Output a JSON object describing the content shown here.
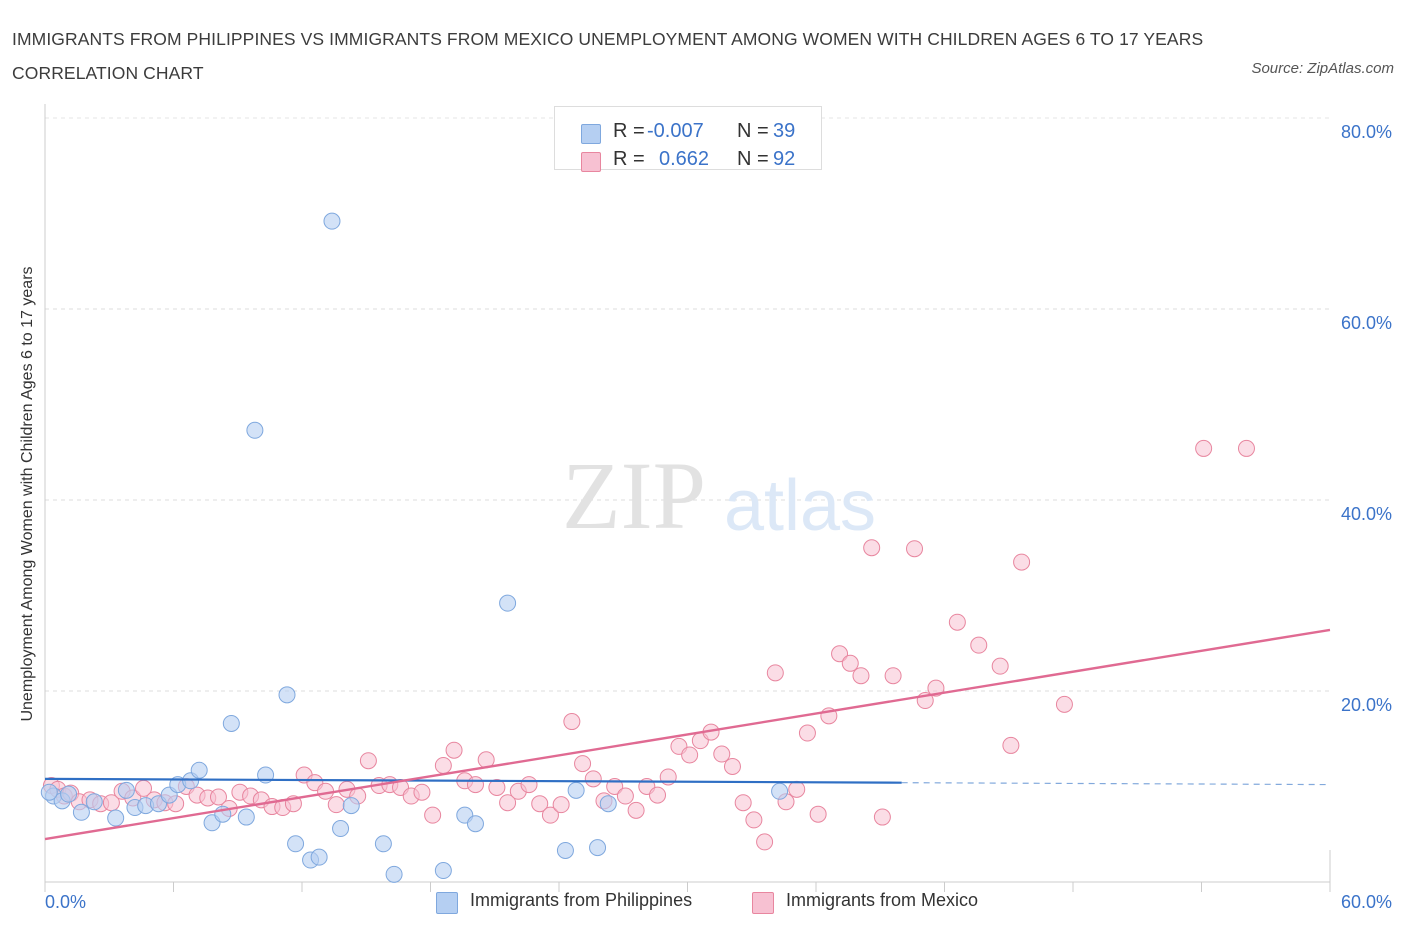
{
  "title": "IMMIGRANTS FROM PHILIPPINES VS IMMIGRANTS FROM MEXICO UNEMPLOYMENT AMONG WOMEN WITH CHILDREN AGES 6 TO 17 YEARS CORRELATION CHART",
  "source": "Source: ZipAtlas.com",
  "watermark": {
    "zip": "ZIP",
    "atlas": "atlas"
  },
  "legend": {
    "rows": [
      {
        "r_label": "R =",
        "r_value": "-0.007",
        "n_label": "N =",
        "n_value": "39",
        "color": "#a8c8f0"
      },
      {
        "r_label": "R =",
        "r_value": "0.662",
        "n_label": "N =",
        "n_value": "92",
        "color": "#f5b8cc"
      }
    ]
  },
  "colors": {
    "philippines_fill": "#b5cff2",
    "philippines_stroke": "#7fa8de",
    "philippines_line": "#2f6fc4",
    "mexico_fill": "#f7c1d2",
    "mexico_stroke": "#e8869f",
    "mexico_line": "#e06a92",
    "axis_label_blue": "#3b73c9"
  },
  "chart_data": {
    "type": "scatter",
    "title": "IMMIGRANTS FROM PHILIPPINES VS IMMIGRANTS FROM MEXICO UNEMPLOYMENT AMONG WOMEN WITH CHILDREN AGES 6 TO 17 YEARS CORRELATION CHART",
    "xlabel": "",
    "ylabel": "Unemployment Among Women with Children Ages 6 to 17 years",
    "xlim": [
      0,
      60
    ],
    "ylim": [
      0,
      80
    ],
    "x_tick_labels": [
      "0.0%",
      "60.0%"
    ],
    "y_tick_labels": [
      "20.0%",
      "40.0%",
      "60.0%",
      "80.0%"
    ],
    "y_ticks": [
      20,
      40,
      60,
      80
    ],
    "grid": "horizontal dashed",
    "legend_position": "top-center",
    "series": [
      {
        "name": "Immigrants from Philippines",
        "R": -0.007,
        "N": 39,
        "trend": {
          "x": [
            0,
            40
          ],
          "y": [
            10.8,
            10.4
          ],
          "extend_dashed_to": 60
        },
        "points": [
          [
            0.4,
            9.0
          ],
          [
            0.8,
            8.5
          ],
          [
            1.1,
            9.2
          ],
          [
            1.7,
            7.3
          ],
          [
            2.3,
            8.4
          ],
          [
            3.3,
            6.7
          ],
          [
            3.8,
            9.6
          ],
          [
            4.2,
            7.8
          ],
          [
            4.7,
            8.0
          ],
          [
            5.3,
            8.2
          ],
          [
            5.8,
            9.1
          ],
          [
            6.2,
            10.2
          ],
          [
            6.8,
            10.6
          ],
          [
            7.2,
            11.7
          ],
          [
            7.8,
            6.2
          ],
          [
            8.3,
            7.1
          ],
          [
            8.7,
            16.6
          ],
          [
            9.4,
            6.8
          ],
          [
            9.8,
            47.3
          ],
          [
            10.3,
            11.2
          ],
          [
            11.3,
            19.6
          ],
          [
            11.7,
            4.0
          ],
          [
            12.4,
            2.3
          ],
          [
            12.8,
            2.6
          ],
          [
            13.4,
            69.2
          ],
          [
            13.8,
            5.6
          ],
          [
            14.3,
            8.0
          ],
          [
            15.8,
            4.0
          ],
          [
            16.3,
            0.8
          ],
          [
            18.6,
            1.2
          ],
          [
            19.6,
            7.0
          ],
          [
            20.1,
            6.1
          ],
          [
            21.6,
            29.2
          ],
          [
            24.3,
            3.3
          ],
          [
            24.8,
            9.6
          ],
          [
            25.8,
            3.6
          ],
          [
            26.3,
            8.2
          ],
          [
            34.3,
            9.5
          ],
          [
            0.2,
            9.4
          ]
        ]
      },
      {
        "name": "Immigrants from Mexico",
        "R": 0.662,
        "N": 92,
        "trend": {
          "x": [
            0,
            60
          ],
          "y": [
            4.5,
            26.4
          ]
        },
        "points": [
          [
            0.3,
            10.1
          ],
          [
            0.6,
            9.7
          ],
          [
            0.9,
            9.0
          ],
          [
            1.2,
            9.3
          ],
          [
            1.6,
            8.4
          ],
          [
            2.1,
            8.6
          ],
          [
            2.6,
            8.2
          ],
          [
            3.1,
            8.3
          ],
          [
            3.6,
            9.5
          ],
          [
            4.1,
            8.8
          ],
          [
            4.6,
            9.8
          ],
          [
            5.1,
            8.6
          ],
          [
            5.6,
            8.3
          ],
          [
            6.1,
            8.2
          ],
          [
            6.6,
            10.0
          ],
          [
            7.1,
            9.1
          ],
          [
            7.6,
            8.8
          ],
          [
            8.1,
            8.9
          ],
          [
            8.6,
            7.7
          ],
          [
            9.1,
            9.4
          ],
          [
            9.6,
            9.0
          ],
          [
            10.1,
            8.6
          ],
          [
            10.6,
            7.9
          ],
          [
            11.1,
            7.8
          ],
          [
            11.6,
            8.2
          ],
          [
            12.1,
            11.2
          ],
          [
            12.6,
            10.4
          ],
          [
            13.1,
            9.5
          ],
          [
            13.6,
            8.1
          ],
          [
            14.1,
            9.7
          ],
          [
            14.6,
            9.0
          ],
          [
            15.1,
            12.7
          ],
          [
            15.6,
            10.1
          ],
          [
            16.1,
            10.2
          ],
          [
            16.6,
            9.9
          ],
          [
            17.1,
            9.0
          ],
          [
            17.6,
            9.4
          ],
          [
            18.1,
            7.0
          ],
          [
            18.6,
            12.2
          ],
          [
            19.1,
            13.8
          ],
          [
            19.6,
            10.6
          ],
          [
            20.1,
            10.2
          ],
          [
            20.6,
            12.8
          ],
          [
            21.1,
            9.9
          ],
          [
            21.6,
            8.3
          ],
          [
            22.1,
            9.5
          ],
          [
            22.6,
            10.2
          ],
          [
            23.1,
            8.2
          ],
          [
            23.6,
            7.0
          ],
          [
            24.1,
            8.1
          ],
          [
            24.6,
            16.8
          ],
          [
            25.1,
            12.4
          ],
          [
            25.6,
            10.8
          ],
          [
            26.1,
            8.5
          ],
          [
            26.6,
            10.0
          ],
          [
            27.1,
            9.0
          ],
          [
            27.6,
            7.5
          ],
          [
            28.1,
            10.0
          ],
          [
            28.6,
            9.1
          ],
          [
            29.1,
            11.0
          ],
          [
            29.6,
            14.2
          ],
          [
            30.1,
            13.3
          ],
          [
            30.6,
            14.8
          ],
          [
            31.1,
            15.7
          ],
          [
            31.6,
            13.4
          ],
          [
            32.1,
            12.1
          ],
          [
            32.6,
            8.3
          ],
          [
            33.1,
            6.5
          ],
          [
            33.6,
            4.2
          ],
          [
            34.1,
            21.9
          ],
          [
            34.6,
            8.4
          ],
          [
            35.1,
            9.7
          ],
          [
            35.6,
            15.6
          ],
          [
            36.1,
            7.1
          ],
          [
            36.6,
            17.4
          ],
          [
            37.1,
            23.9
          ],
          [
            37.6,
            22.9
          ],
          [
            38.1,
            21.6
          ],
          [
            38.6,
            35.0
          ],
          [
            39.1,
            6.8
          ],
          [
            39.6,
            21.6
          ],
          [
            40.6,
            34.9
          ],
          [
            41.1,
            19.0
          ],
          [
            41.6,
            20.3
          ],
          [
            42.6,
            27.2
          ],
          [
            43.6,
            24.8
          ],
          [
            44.6,
            22.6
          ],
          [
            45.1,
            14.3
          ],
          [
            45.6,
            33.5
          ],
          [
            47.6,
            18.6
          ],
          [
            54.1,
            45.4
          ],
          [
            56.1,
            45.4
          ]
        ]
      }
    ]
  },
  "bottom_legend": [
    {
      "label": "Immigrants from Philippines"
    },
    {
      "label": "Immigrants from Mexico"
    }
  ]
}
